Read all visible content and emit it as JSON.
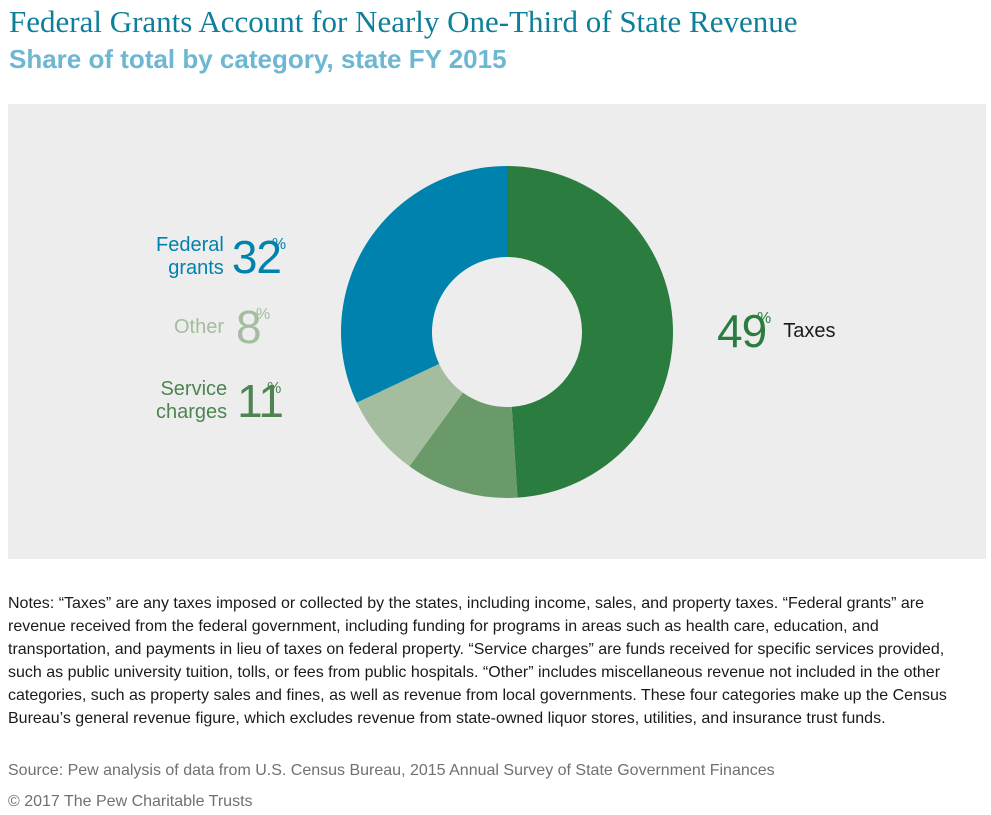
{
  "title": "Federal Grants Account for Nearly One-Third of State Revenue",
  "subtitle": "Share of total by category, state FY 2015",
  "colors": {
    "taxes": "#2a7d3f",
    "service_charges": "#6a9a6a",
    "other": "#a3bd9e",
    "federal_grants": "#0082ae",
    "panel_bg": "#ededed",
    "title": "#0d7f9a",
    "subtitle": "#6db7d2"
  },
  "labels": {
    "federal_grants": {
      "name_line1": "Federal",
      "name_line2": "grants",
      "value": "32",
      "pct": "%"
    },
    "other": {
      "name": "Other",
      "value": "8",
      "pct": "%"
    },
    "service_charges": {
      "name_line1": "Service",
      "name_line2": "charges",
      "value": "11",
      "pct": "%"
    },
    "taxes": {
      "name": "Taxes",
      "value": "49",
      "pct": "%"
    }
  },
  "chart_data": {
    "type": "pie",
    "donut": true,
    "categories": [
      "Taxes",
      "Service charges",
      "Other",
      "Federal grants"
    ],
    "values": [
      49,
      11,
      8,
      32
    ],
    "unit": "%",
    "title": "Federal Grants Account for Nearly One-Third of State Revenue",
    "subtitle": "Share of total by category, state FY 2015"
  },
  "notes": "Notes: “Taxes” are any taxes imposed or collected by the states, including income, sales, and property taxes. “Federal grants” are revenue received from the federal government, including funding for programs in areas such as health care, education, and transportation, and payments in lieu of taxes on federal property. “Service charges” are funds received for specific services provided, such as public university tuition, tolls, or fees from public hospitals. “Other” includes miscellaneous revenue not included in the other categories, such as property sales and fines, as well as revenue from local governments. These four categories make up the Census Bureau’s general revenue figure, which excludes revenue from state-owned liquor stores, utilities, and insurance trust funds.",
  "source": "Source: Pew analysis of data from U.S. Census Bureau, 2015 Annual Survey of State Government Finances",
  "copyright": "© 2017 The Pew Charitable Trusts"
}
